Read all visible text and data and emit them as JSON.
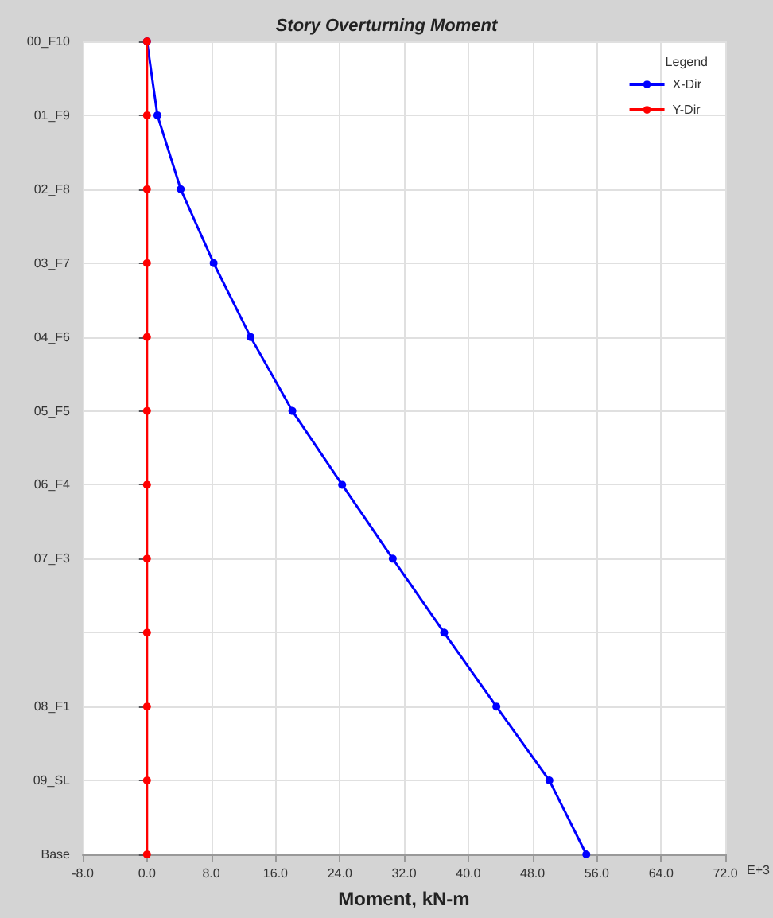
{
  "chart_data": {
    "type": "line",
    "title": "Story Overturning Moment",
    "xlabel": "Moment, kN-m",
    "legend_title": "Legend",
    "orientation": "horizontal",
    "categories": [
      "00_F10",
      "01_F9",
      "02_F8",
      "03_F7",
      "04_F6",
      "05_F5",
      "06_F4",
      "07_F3",
      null,
      "08_F1",
      "09_SL",
      "Base"
    ],
    "series": [
      {
        "name": "X-Dir",
        "color": "#0000ff",
        "values": [
          0,
          1.3,
          4.2,
          8.3,
          12.9,
          18.1,
          24.3,
          30.6,
          37.0,
          43.5,
          50.1,
          54.7
        ]
      },
      {
        "name": "Y-Dir",
        "color": "#ff0000",
        "values": [
          0,
          0,
          0,
          0,
          0,
          0,
          0,
          0,
          0,
          0,
          0,
          0
        ]
      }
    ],
    "xlim": [
      -8,
      72
    ],
    "xticks": [
      {
        "value": -8,
        "label": "-8.0"
      },
      {
        "value": 0,
        "label": "0.0"
      },
      {
        "value": 8,
        "label": "8.0"
      },
      {
        "value": 16,
        "label": "16.0"
      },
      {
        "value": 24,
        "label": "24.0"
      },
      {
        "value": 32,
        "label": "32.0"
      },
      {
        "value": 40,
        "label": "40.0"
      },
      {
        "value": 48,
        "label": "48.0"
      },
      {
        "value": 56,
        "label": "56.0"
      },
      {
        "value": 64,
        "label": "64.0"
      },
      {
        "value": 72,
        "label": "72.0"
      }
    ],
    "annotations": [
      "E+3"
    ],
    "grid": true,
    "legend": "top right",
    "marker": "circle",
    "line_style": "solid"
  }
}
